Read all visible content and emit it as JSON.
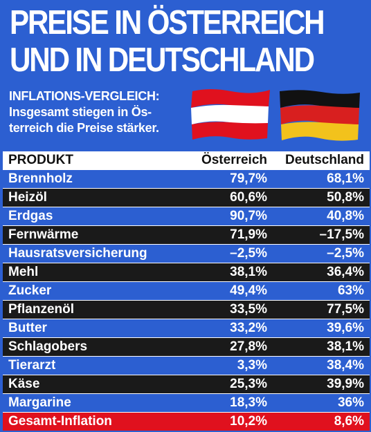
{
  "headline": {
    "line1": "PREISE IN ÖSTERREICH",
    "line2": "UND IN DEUTSCHLAND"
  },
  "subtitle": {
    "line1": "INFLATIONS-VERGLEICH:",
    "line2": "Insgesamt stiegen in Ös-",
    "line3": "terreich die Preise stärker."
  },
  "flags": {
    "austria": {
      "colors": [
        "#e0111e",
        "#ffffff",
        "#e0111e"
      ]
    },
    "germany": {
      "colors": [
        "#111111",
        "#d81f1f",
        "#f2c21c"
      ]
    }
  },
  "table": {
    "headers": {
      "product": "PRODUKT",
      "austria": "Österreich",
      "germany": "Deutschland"
    },
    "rows": [
      {
        "product": "Brennholz",
        "austria": "79,7%",
        "germany": "68,1%",
        "style": "blue"
      },
      {
        "product": "Heizöl",
        "austria": "60,6%",
        "germany": "50,8%",
        "style": "black"
      },
      {
        "product": "Erdgas",
        "austria": "90,7%",
        "germany": "40,8%",
        "style": "blue"
      },
      {
        "product": "Fernwärme",
        "austria": "71,9%",
        "germany": "–17,5%",
        "style": "black"
      },
      {
        "product": "Hausratsversicherung",
        "austria": "–2,5%",
        "germany": "–2,5%",
        "style": "blue"
      },
      {
        "product": "Mehl",
        "austria": "38,1%",
        "germany": "36,4%",
        "style": "black"
      },
      {
        "product": "Zucker",
        "austria": "49,4%",
        "germany": "63%",
        "style": "blue"
      },
      {
        "product": "Pflanzenöl",
        "austria": "33,5%",
        "germany": "77,5%",
        "style": "black"
      },
      {
        "product": "Butter",
        "austria": "33,2%",
        "germany": "39,6%",
        "style": "blue"
      },
      {
        "product": "Schlagobers",
        "austria": "27,8%",
        "germany": "38,1%",
        "style": "black"
      },
      {
        "product": "Tierarzt",
        "austria": "3,3%",
        "germany": "38,4%",
        "style": "blue"
      },
      {
        "product": "Käse",
        "austria": "25,3%",
        "germany": "39,9%",
        "style": "black"
      },
      {
        "product": "Margarine",
        "austria": "18,3%",
        "germany": "36%",
        "style": "blue"
      },
      {
        "product": "Gesamt-Inflation",
        "austria": "10,2%",
        "germany": "8,6%",
        "style": "red"
      }
    ]
  }
}
